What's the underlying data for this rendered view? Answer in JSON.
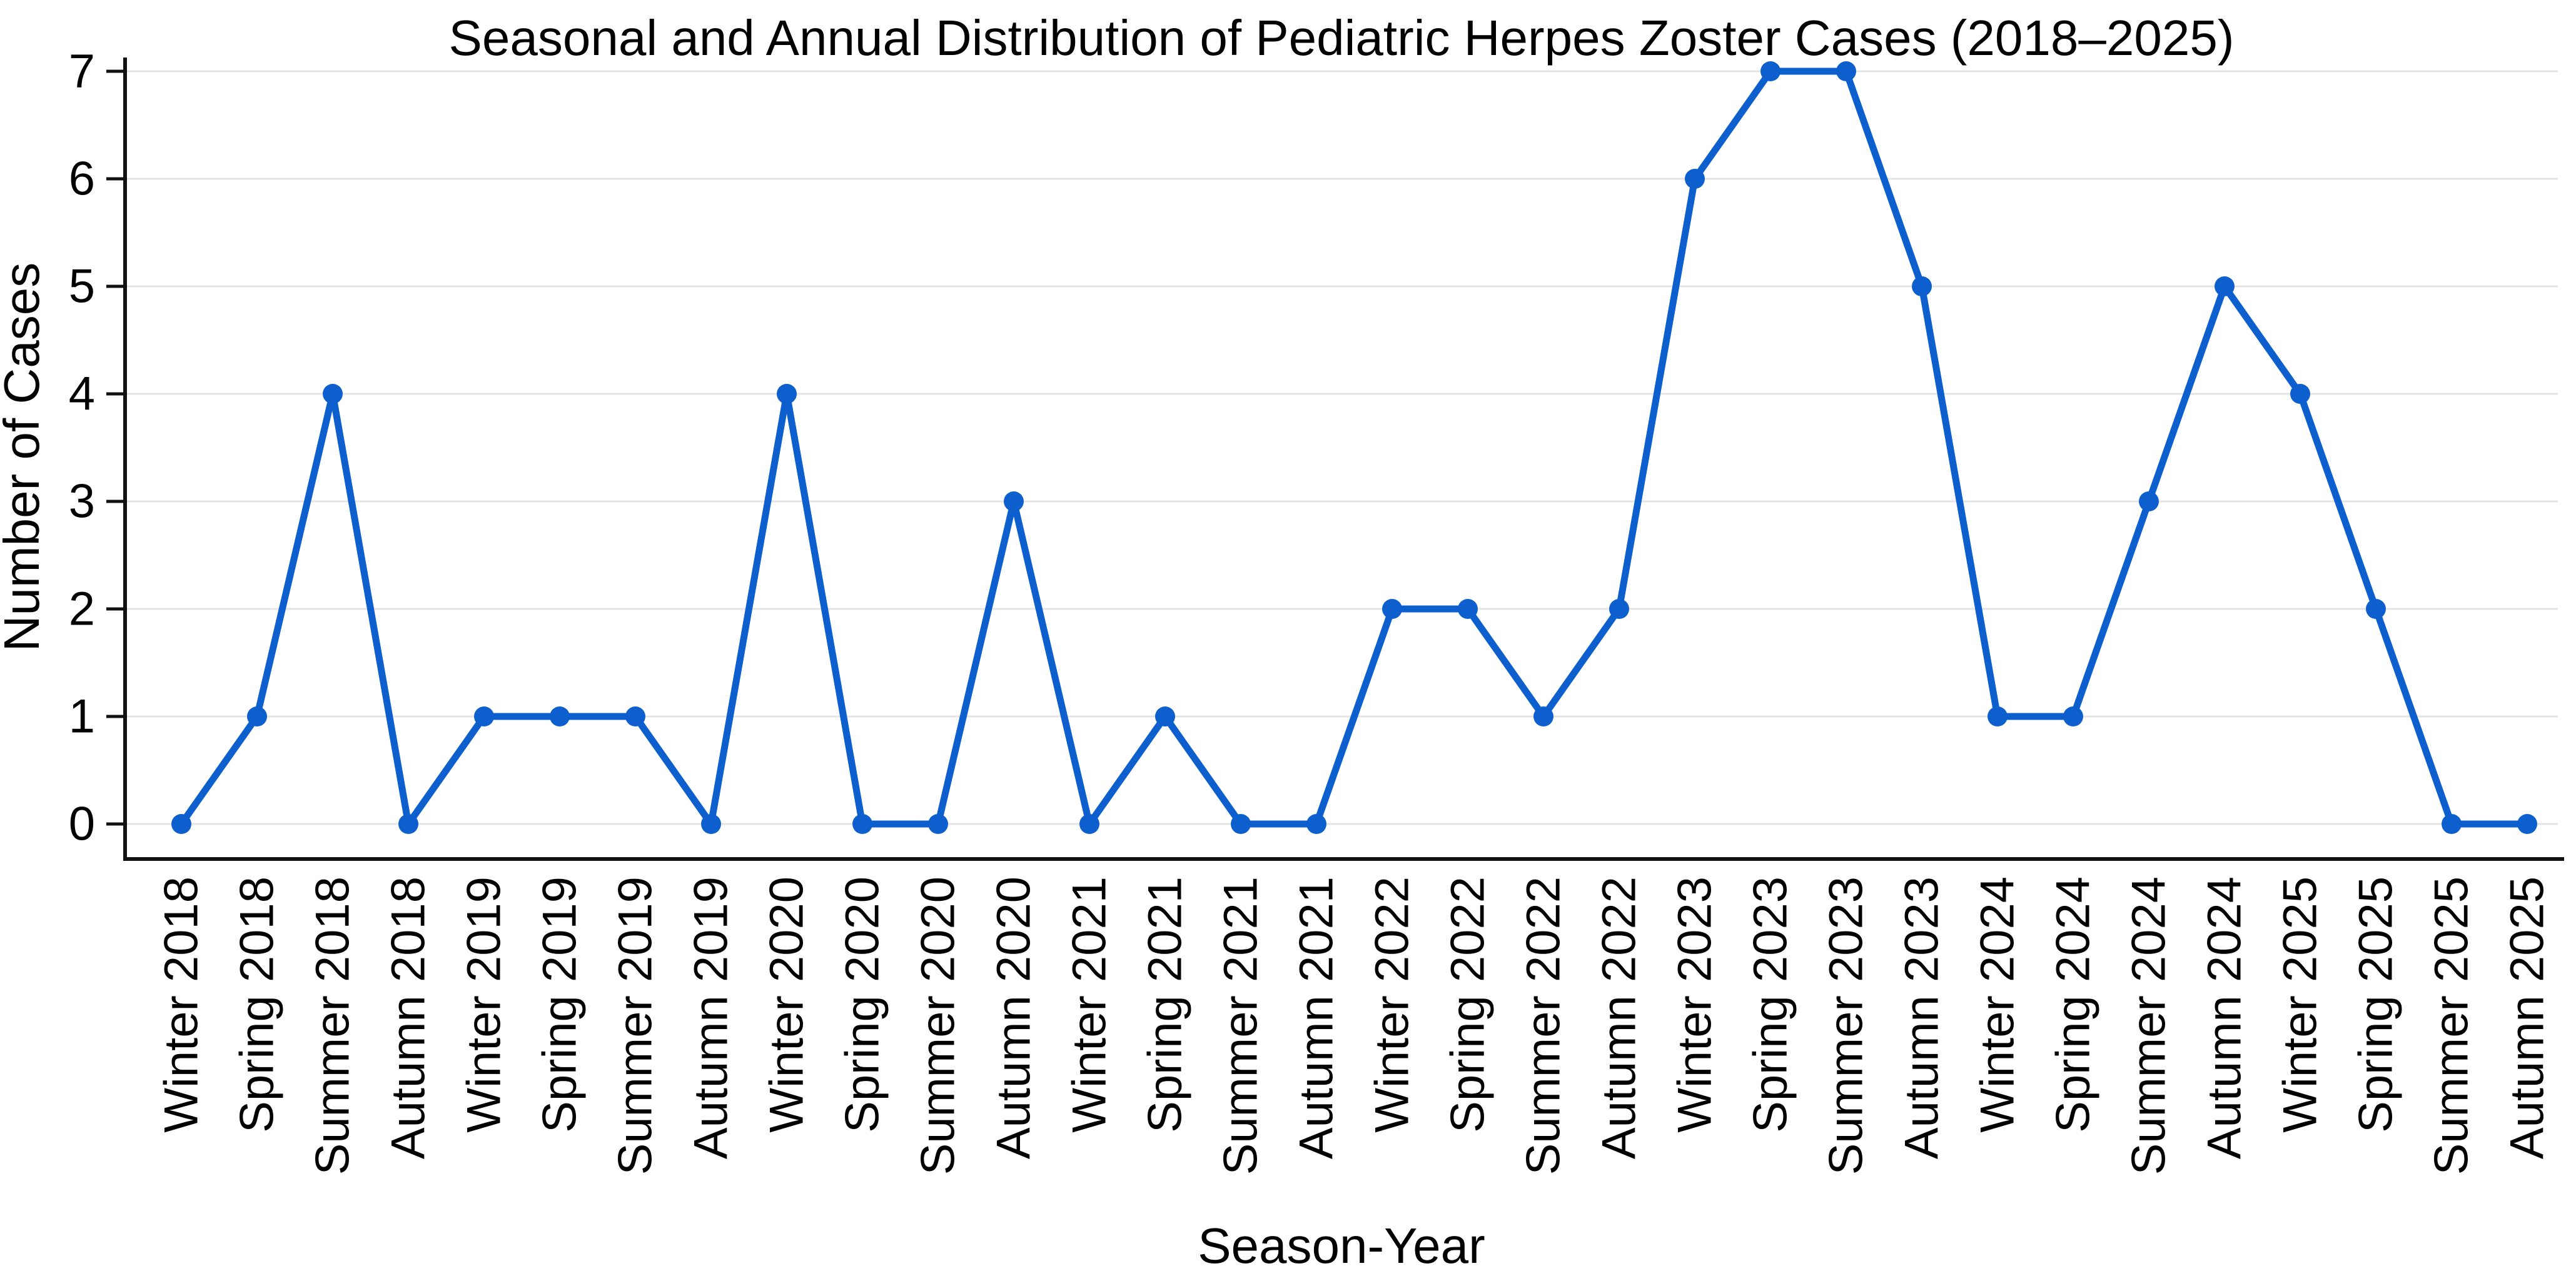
{
  "chart_data": {
    "type": "line",
    "title": "Seasonal and Annual Distribution of Pediatric Herpes Zoster Cases (2018–2025)",
    "xlabel": "Season-Year",
    "ylabel": "Number of Cases",
    "categories": [
      "Winter 2018",
      "Spring 2018",
      "Summer 2018",
      "Autumn 2018",
      "Winter 2019",
      "Spring 2019",
      "Summer 2019",
      "Autumn 2019",
      "Winter 2020",
      "Spring 2020",
      "Summer 2020",
      "Autumn 2020",
      "Winter 2021",
      "Spring 2021",
      "Summer 2021",
      "Autumn 2021",
      "Winter 2022",
      "Spring 2022",
      "Summer 2022",
      "Autumn 2022",
      "Winter 2023",
      "Spring 2023",
      "Summer 2023",
      "Autumn 2023",
      "Winter 2024",
      "Spring 2024",
      "Summer 2024",
      "Autumn 2024",
      "Winter 2025",
      "Spring 2025",
      "Summer 2025",
      "Autumn 2025"
    ],
    "values": [
      0,
      1,
      4,
      0,
      1,
      1,
      1,
      0,
      4,
      0,
      0,
      3,
      0,
      1,
      0,
      0,
      2,
      2,
      1,
      2,
      6,
      7,
      7,
      5,
      1,
      1,
      3,
      5,
      4,
      2,
      0,
      0
    ],
    "ylim": [
      0,
      7
    ],
    "yticks": [
      0,
      1,
      2,
      3,
      4,
      5,
      6,
      7
    ],
    "grid": true,
    "legend_position": "none",
    "line_color": "#0d5fce",
    "marker_color": "#0d5fce",
    "marker_shape": "circle",
    "grid_color": "#e4e4e4",
    "axis_color": "#111111",
    "text_color": "#000000",
    "background_color": "#ffffff"
  }
}
